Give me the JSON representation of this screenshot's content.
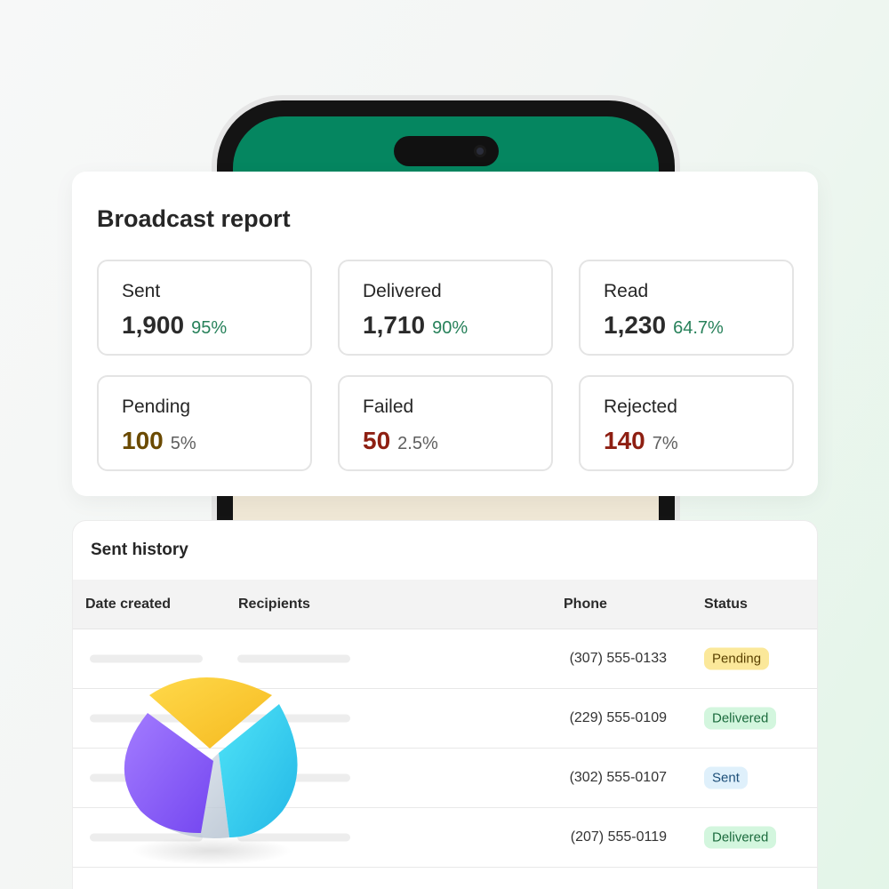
{
  "report": {
    "title": "Broadcast report",
    "stats": [
      {
        "label": "Sent",
        "value": "1,900",
        "percent": "95%",
        "tone": "good"
      },
      {
        "label": "Delivered",
        "value": "1,710",
        "percent": "90%",
        "tone": "good"
      },
      {
        "label": "Read",
        "value": "1,230",
        "percent": "64.7%",
        "tone": "good"
      },
      {
        "label": "Pending",
        "value": "100",
        "percent": "5%",
        "tone": "warn"
      },
      {
        "label": "Failed",
        "value": "50",
        "percent": "2.5%",
        "tone": "bad"
      },
      {
        "label": "Rejected",
        "value": "140",
        "percent": "7%",
        "tone": "bad"
      }
    ]
  },
  "history": {
    "title": "Sent history",
    "columns": [
      "Date created",
      "Recipients",
      "Phone",
      "Status"
    ],
    "rows": [
      {
        "phone": "(307) 555-0133",
        "status": "Pending"
      },
      {
        "phone": "(229) 555-0109",
        "status": "Delivered"
      },
      {
        "phone": "(302) 555-0107",
        "status": "Sent"
      },
      {
        "phone": "(207) 555-0119",
        "status": "Delivered"
      }
    ]
  },
  "colors": {
    "brand_green": "#058660",
    "good": "#27815a",
    "warn": "#6b4a00",
    "bad": "#8e1f12",
    "badge_pending": "#fbe89a",
    "badge_delivered": "#d3f6de",
    "badge_sent": "#dff0fb"
  },
  "icons": {
    "decoration": "pie-chart-3d-icon",
    "phone_camera": "camera-icon"
  }
}
